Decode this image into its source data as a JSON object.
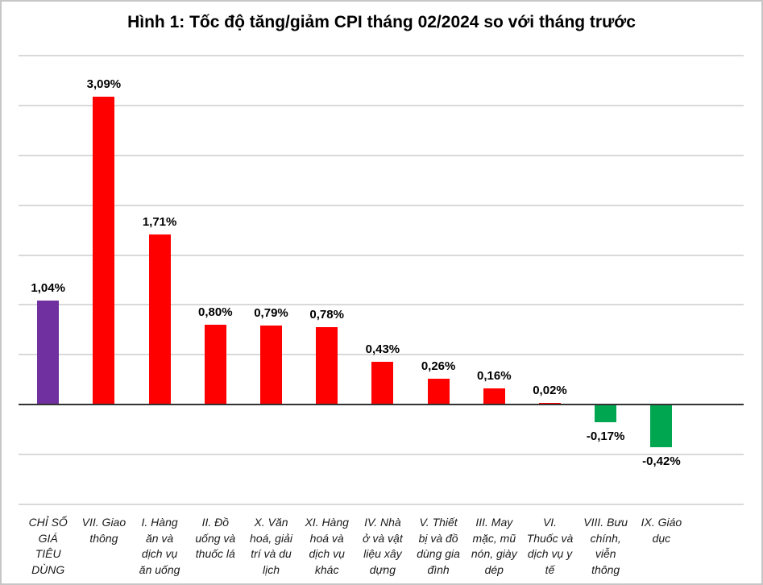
{
  "title": "Hình 1: Tốc độ tăng/giảm CPI tháng 02/2024 so với tháng trước",
  "chart_data": {
    "type": "bar",
    "title": "Hình 1: Tốc độ tăng/giảm CPI tháng 02/2024 so với tháng trước",
    "unit": "%",
    "decimal_separator": ",",
    "legend": "none",
    "grid": "on",
    "ylim": [
      -1.0,
      3.5
    ],
    "grid_step": 0.5,
    "categories": [
      "CHỈ SỐ\nGIÁ\nTIÊU\nDÙNG",
      "VII. Giao\nthông",
      "I. Hàng\năn và\ndịch vụ\năn uống",
      "II. Đồ\nuống và\nthuốc lá",
      "X. Văn\nhoá, giải\ntrí và du\nlịch",
      "XI. Hàng\nhoá và\ndịch vụ\nkhác",
      "IV. Nhà\nở và vật\nliệu xây\ndựng",
      "V. Thiết\nbị và đồ\ndùng gia\nđình",
      "III. May\nmặc, mũ\nnón, giày\ndép",
      "VI.\nThuốc và\ndịch vụ y\ntế",
      "VIII. Bưu\nchính,\nviễn\nthông",
      "IX. Giáo\ndục"
    ],
    "values": [
      1.04,
      3.09,
      1.71,
      0.8,
      0.79,
      0.78,
      0.43,
      0.26,
      0.16,
      0.02,
      -0.17,
      -0.42
    ],
    "value_labels": [
      "1,04%",
      "3,09%",
      "1,71%",
      "0,80%",
      "0,79%",
      "0,78%",
      "0,43%",
      "0,26%",
      "0,16%",
      "0,02%",
      "-0,17%",
      "-0,42%"
    ],
    "bar_colors": [
      "#7030A0",
      "#FF0000",
      "#FF0000",
      "#FF0000",
      "#FF0000",
      "#FF0000",
      "#FF0000",
      "#FF0000",
      "#FF0000",
      "#FF0000",
      "#00A650",
      "#00A650"
    ],
    "colors": {
      "cpi_total": "#7030A0",
      "increase": "#FF0000",
      "decrease": "#00A650",
      "gridline": "#D9D9D9",
      "axis": "#333333",
      "value_label": "#000000",
      "category_label": "#1A1A1A",
      "title": "#000000",
      "border": "#C6C6C6",
      "background": "#FFFFFF"
    }
  }
}
